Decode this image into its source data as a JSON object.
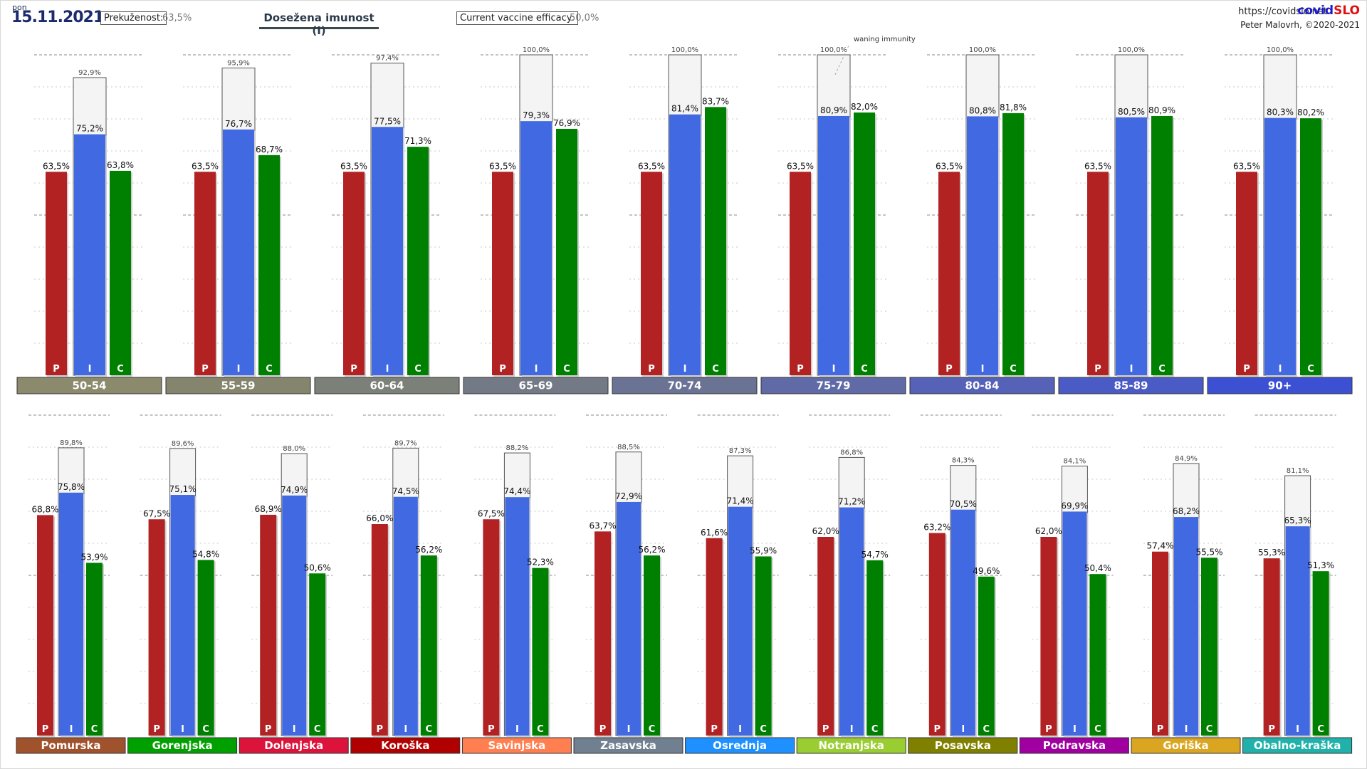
{
  "header": {
    "day": "pon",
    "date": "15.11.2021",
    "prekuzenost_label": "Prekuženost:",
    "prekuzenost_value": "63,5%",
    "title": "Dosežena imunost (I)",
    "efficacy_label": "Current vaccine efficacy:",
    "efficacy_value": "50,0%",
    "url": "https://covidslo.net",
    "brand_a": "covid",
    "brand_b": "SLO",
    "author": "Peter Malovrh, ©2020-2021"
  },
  "annotation": "waning immunity",
  "bar_letters": [
    "P",
    "I",
    "C"
  ],
  "colors": {
    "P": "#b22222",
    "I": "#4169e1",
    "C": "#008000",
    "ghost": "#f4f4f4"
  },
  "chart_data": [
    {
      "type": "bar",
      "name": "age groups",
      "categories": [
        "50-54",
        "55-59",
        "60-64",
        "65-69",
        "70-74",
        "75-79",
        "80-84",
        "85-89",
        "90+"
      ],
      "category_colors": [
        "#8c8a6c",
        "#85856e",
        "#7b8079",
        "#737a86",
        "#6a7394",
        "#5f6aa6",
        "#5562b7",
        "#4b5bc6",
        "#3c50d4"
      ],
      "P": [
        63.5,
        63.5,
        63.5,
        63.5,
        63.5,
        63.5,
        63.5,
        63.5,
        63.5
      ],
      "I": [
        75.2,
        76.7,
        77.5,
        79.3,
        81.4,
        80.9,
        80.8,
        80.5,
        80.3
      ],
      "C": [
        63.8,
        68.7,
        71.3,
        76.9,
        83.7,
        82.0,
        81.8,
        80.9,
        80.2
      ],
      "max": [
        92.9,
        95.9,
        97.4,
        100.0,
        100.0,
        100.0,
        100.0,
        100.0,
        100.0
      ],
      "ylim": [
        0,
        100
      ]
    },
    {
      "type": "bar",
      "name": "regions",
      "categories": [
        "Pomurska",
        "Gorenjska",
        "Dolenjska",
        "Koroška",
        "Savinjska",
        "Zasavska",
        "Osrednja",
        "Notranjska",
        "Posavska",
        "Podravska",
        "Goriška",
        "Obalno-kraška"
      ],
      "category_colors": [
        "#a0522d",
        "#00a000",
        "#dc143c",
        "#b00000",
        "#ff7f50",
        "#708090",
        "#1e90ff",
        "#9acd32",
        "#808000",
        "#a000a0",
        "#daa520",
        "#20b2aa"
      ],
      "P": [
        68.8,
        67.5,
        68.9,
        66.0,
        67.5,
        63.7,
        61.6,
        62.0,
        63.2,
        62.0,
        57.4,
        55.3
      ],
      "I": [
        75.8,
        75.1,
        74.9,
        74.5,
        74.4,
        72.9,
        71.4,
        71.2,
        70.5,
        69.9,
        68.2,
        65.3
      ],
      "C": [
        53.9,
        54.8,
        50.6,
        56.2,
        52.3,
        56.2,
        55.9,
        54.7,
        49.6,
        50.4,
        55.5,
        51.3
      ],
      "max": [
        89.8,
        89.6,
        88.0,
        89.7,
        88.2,
        88.5,
        87.3,
        86.8,
        84.3,
        84.1,
        84.9,
        81.1
      ],
      "ylim": [
        0,
        100
      ]
    }
  ]
}
